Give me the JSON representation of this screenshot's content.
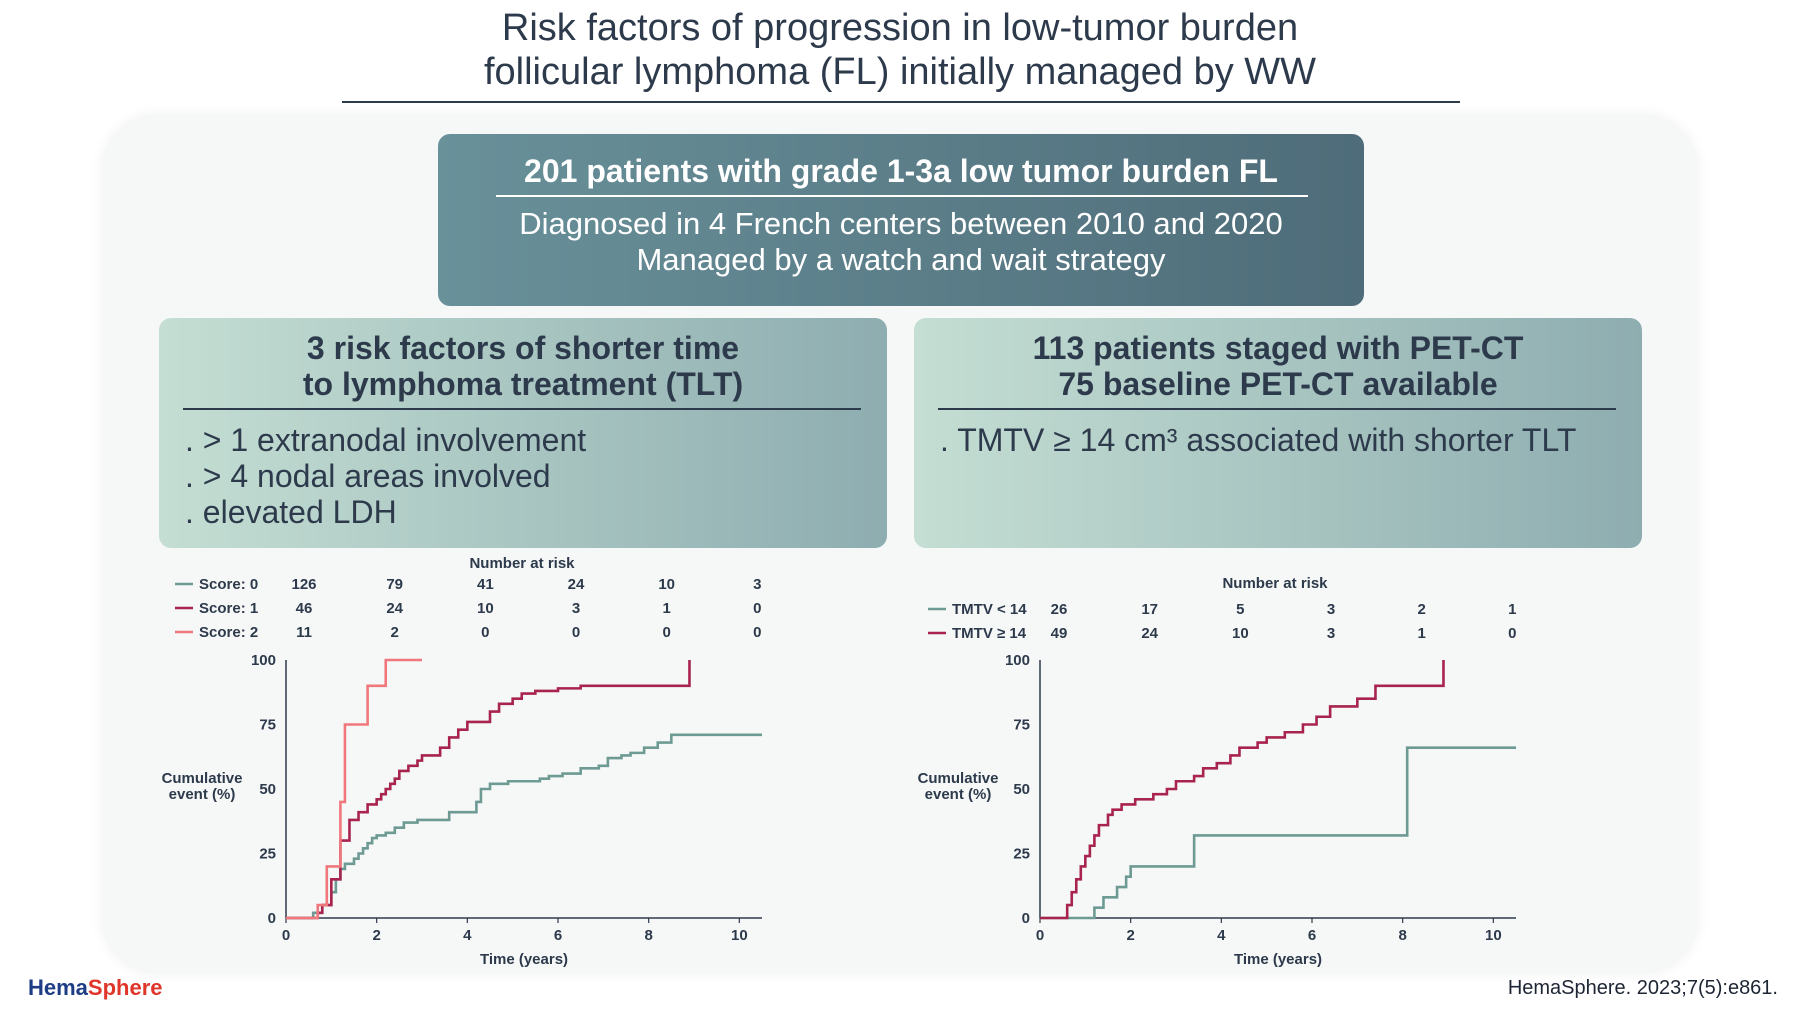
{
  "title": {
    "line1": "Risk factors of progression in low-tumor burden",
    "line2": "follicular lymphoma (FL) initially managed by WW"
  },
  "cohort": {
    "heading": "201 patients with grade 1-3a low tumor burden FL",
    "line1": "Diagnosed in 4 French centers between 2010 and 2020",
    "line2": "Managed by a watch and wait strategy"
  },
  "left_box": {
    "heading_line1": "3 risk factors of shorter time",
    "heading_line2": "to lymphoma treatment (TLT)",
    "items": [
      ". > 1 extranodal involvement",
      ". > 4 nodal areas involved",
      ". elevated LDH"
    ]
  },
  "right_box": {
    "heading_line1": "113 patients staged with PET-CT",
    "heading_line2": "75 baseline PET-CT available",
    "items": [
      ". TMTV ≥ 14 cm³ associated with shorter TLT"
    ]
  },
  "colors": {
    "teal": "#6e9a94",
    "crimson": "#a8244e",
    "pink": "#f0787c"
  },
  "chart_data": [
    {
      "type": "line",
      "risk_title": "Number at risk",
      "xlabel": "Time (years)",
      "ylabel_line1": "Cumulative",
      "ylabel_line2": "event (%)",
      "xlim": [
        0,
        10.5
      ],
      "ylim": [
        0,
        100
      ],
      "xticks": [
        "0",
        "2",
        "4",
        "6",
        "8",
        "10"
      ],
      "yticks": [
        "0",
        "25",
        "50",
        "75",
        "100"
      ],
      "risk_times": [
        0,
        2,
        4,
        6,
        8,
        10
      ],
      "series": [
        {
          "name": "Score: 0",
          "color": "#6e9a94",
          "at_risk": [
            "126",
            "79",
            "41",
            "24",
            "10",
            "3"
          ],
          "x": [
            0,
            0.5,
            0.6,
            0.8,
            1.0,
            1.1,
            1.2,
            1.3,
            1.5,
            1.6,
            1.7,
            1.8,
            1.9,
            2.0,
            2.2,
            2.4,
            2.6,
            2.9,
            3.2,
            3.6,
            4.0,
            4.2,
            4.3,
            4.5,
            4.9,
            5.2,
            5.6,
            5.8,
            6.1,
            6.5,
            6.9,
            7.1,
            7.4,
            7.6,
            7.9,
            8.2,
            8.5,
            10.5
          ],
          "y": [
            0,
            0,
            2,
            5,
            10,
            15,
            19,
            21,
            23,
            25,
            27,
            29,
            31,
            32,
            33,
            35,
            37,
            38,
            38,
            41,
            41,
            45,
            50,
            52,
            53,
            53,
            54,
            55,
            56,
            58,
            59,
            62,
            63,
            64,
            66,
            68,
            71,
            71
          ]
        },
        {
          "name": "Score: 1",
          "color": "#a8244e",
          "at_risk": [
            "46",
            "24",
            "10",
            "3",
            "1",
            "0"
          ],
          "x": [
            0,
            0.5,
            0.7,
            0.8,
            1.0,
            1.2,
            1.4,
            1.6,
            1.8,
            2.0,
            2.1,
            2.2,
            2.3,
            2.4,
            2.5,
            2.7,
            2.9,
            3.0,
            3.4,
            3.6,
            3.8,
            4.0,
            4.5,
            4.7,
            5.0,
            5.2,
            5.5,
            6.0,
            6.5,
            7.0,
            8.5,
            8.9,
            8.9
          ],
          "y": [
            0,
            0,
            2,
            5,
            15,
            30,
            38,
            41,
            44,
            46,
            48,
            50,
            52,
            54,
            57,
            59,
            61,
            63,
            66,
            70,
            73,
            76,
            80,
            83,
            85,
            87,
            88,
            89,
            90,
            90,
            90,
            91,
            100
          ]
        },
        {
          "name": "Score: 2",
          "color": "#f0787c",
          "at_risk": [
            "11",
            "2",
            "0",
            "0",
            "0",
            "0"
          ],
          "x": [
            0,
            0.6,
            0.7,
            0.9,
            1.1,
            1.2,
            1.3,
            1.5,
            1.7,
            1.8,
            2.1,
            2.2,
            3.0
          ],
          "y": [
            0,
            0,
            5,
            20,
            20,
            45,
            75,
            75,
            75,
            90,
            90,
            100,
            100
          ]
        }
      ]
    },
    {
      "type": "line",
      "risk_title": "Number at risk",
      "xlabel": "Time (years)",
      "ylabel_line1": "Cumulative",
      "ylabel_line2": "event (%)",
      "xlim": [
        0,
        10.5
      ],
      "ylim": [
        0,
        100
      ],
      "xticks": [
        "0",
        "2",
        "4",
        "6",
        "8",
        "10"
      ],
      "yticks": [
        "0",
        "25",
        "50",
        "75",
        "100"
      ],
      "risk_times": [
        0,
        2,
        4,
        6,
        8,
        10
      ],
      "series": [
        {
          "name": "TMTV < 14",
          "color": "#6e9a94",
          "at_risk": [
            "26",
            "17",
            "5",
            "3",
            "2",
            "1"
          ],
          "x": [
            0,
            1.1,
            1.2,
            1.4,
            1.5,
            1.7,
            1.9,
            2.0,
            3.4,
            3.4,
            8.1,
            8.1,
            10.5
          ],
          "y": [
            0,
            0,
            4,
            8,
            8,
            12,
            16,
            20,
            20,
            32,
            32,
            66,
            66
          ]
        },
        {
          "name": "TMTV ≥ 14",
          "color": "#a8244e",
          "at_risk": [
            "49",
            "24",
            "10",
            "3",
            "1",
            "0"
          ],
          "x": [
            0,
            0.5,
            0.6,
            0.7,
            0.8,
            0.9,
            1.0,
            1.1,
            1.2,
            1.3,
            1.5,
            1.6,
            1.8,
            2.0,
            2.1,
            2.5,
            2.8,
            3.0,
            3.4,
            3.6,
            3.9,
            4.2,
            4.4,
            4.8,
            5.0,
            5.4,
            5.8,
            6.1,
            6.4,
            7.0,
            7.4,
            8.5,
            8.9,
            8.9
          ],
          "y": [
            0,
            0,
            5,
            10,
            15,
            20,
            24,
            28,
            32,
            36,
            40,
            42,
            44,
            44,
            46,
            48,
            50,
            53,
            55,
            58,
            60,
            63,
            66,
            68,
            70,
            72,
            75,
            78,
            82,
            85,
            90,
            90,
            92,
            100
          ]
        }
      ]
    }
  ],
  "footer": {
    "logo_hema": "Hema",
    "logo_sphere": "Sphere",
    "citation": "HemaSphere. 2023;7(5):e861."
  }
}
